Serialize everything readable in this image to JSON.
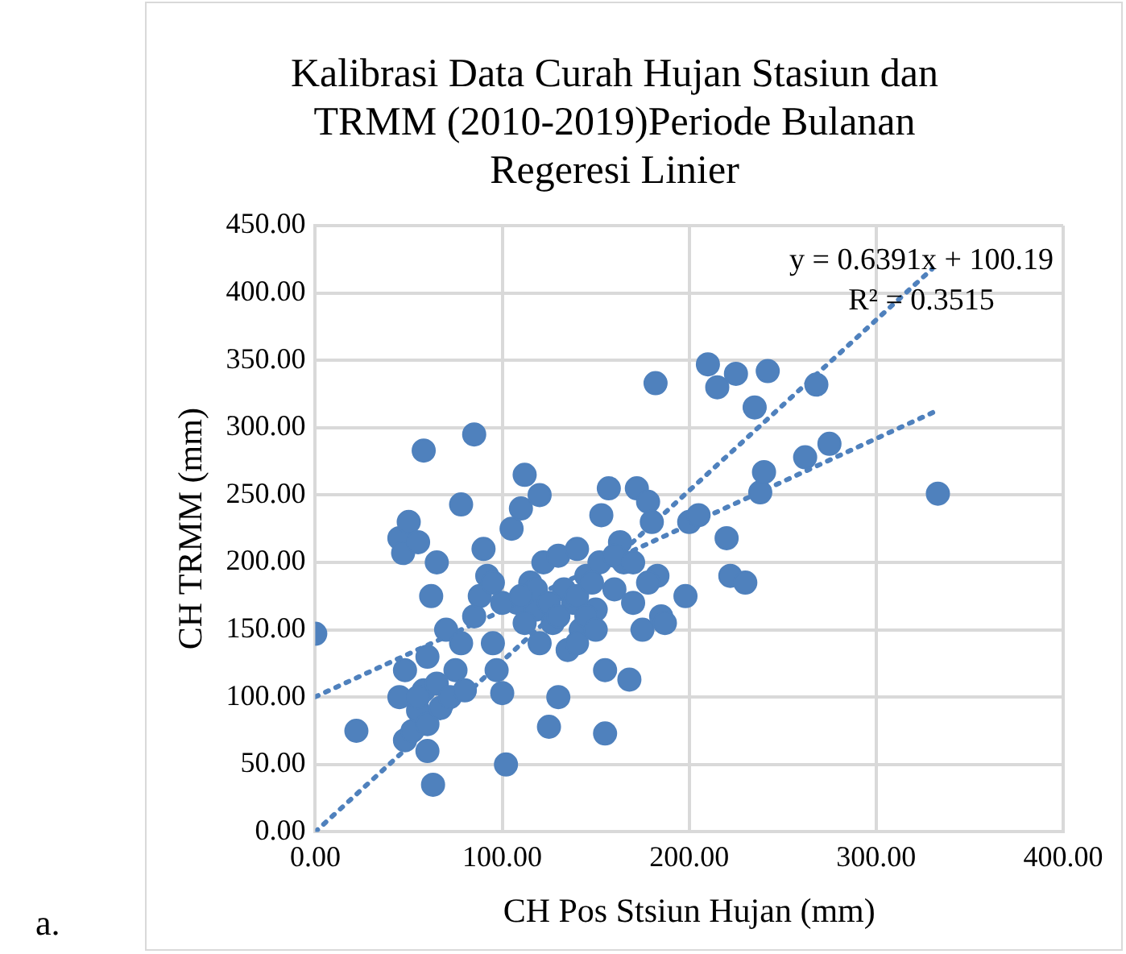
{
  "chart_data": {
    "type": "scatter",
    "title": "Kalibrasi Data Curah Hujan Stasiun dan TRMM (2010-2019)Periode Bulanan Regeresi Linier",
    "xlabel": "CH Pos Stsiun Hujan (mm)",
    "ylabel": "CH TRMM (mm)",
    "xlim": [
      0,
      400
    ],
    "ylim": [
      0,
      450
    ],
    "xticks": [
      {
        "value": 0,
        "label": "0.00"
      },
      {
        "value": 100,
        "label": "100.00"
      },
      {
        "value": 200,
        "label": "200.00"
      },
      {
        "value": 300,
        "label": "300.00"
      },
      {
        "value": 400,
        "label": "400.00"
      }
    ],
    "yticks": [
      {
        "value": 0,
        "label": "0.00"
      },
      {
        "value": 50,
        "label": "50.00"
      },
      {
        "value": 100,
        "label": "100.00"
      },
      {
        "value": 150,
        "label": "150.00"
      },
      {
        "value": 200,
        "label": "200.00"
      },
      {
        "value": 250,
        "label": "250.00"
      },
      {
        "value": 300,
        "label": "300.00"
      },
      {
        "value": 350,
        "label": "350.00"
      },
      {
        "value": 400,
        "label": "400.00"
      },
      {
        "value": 450,
        "label": "450.00"
      }
    ],
    "grid": true,
    "legend": false,
    "marker": "circle",
    "series": [
      {
        "color": "#4f81bd",
        "x": [
          0,
          22,
          45,
          47,
          50,
          55,
          48,
          45,
          48,
          52,
          55,
          58,
          60,
          62,
          60,
          63,
          65,
          58,
          55,
          60,
          65,
          67,
          70,
          72,
          75,
          78,
          80,
          85,
          78,
          85,
          88,
          90,
          92,
          95,
          97,
          100,
          102,
          105,
          108,
          110,
          112,
          115,
          118,
          120,
          122,
          125,
          127,
          130,
          130,
          133,
          135,
          138,
          140,
          142,
          145,
          150,
          152,
          153,
          155,
          155,
          157,
          160,
          163,
          165,
          168,
          170,
          172,
          175,
          178,
          180,
          182,
          183,
          185,
          187,
          198,
          200,
          205,
          210,
          215,
          220,
          222,
          225,
          230,
          235,
          238,
          240,
          242,
          262,
          268,
          275,
          333,
          112,
          118,
          125,
          130,
          140,
          145,
          148,
          160,
          170,
          178,
          95,
          100,
          110,
          120,
          140,
          150
        ],
        "values": [
          147,
          75,
          218,
          207,
          230,
          215,
          120,
          100,
          68,
          75,
          90,
          105,
          130,
          175,
          60,
          35,
          200,
          283,
          100,
          80,
          110,
          92,
          150,
          100,
          120,
          140,
          105,
          295,
          243,
          160,
          175,
          210,
          190,
          140,
          120,
          103,
          50,
          225,
          170,
          240,
          265,
          185,
          165,
          250,
          200,
          78,
          155,
          100,
          205,
          180,
          135,
          170,
          210,
          150,
          190,
          165,
          200,
          235,
          120,
          73,
          255,
          180,
          215,
          200,
          113,
          170,
          255,
          150,
          245,
          230,
          333,
          190,
          160,
          155,
          175,
          230,
          235,
          347,
          330,
          218,
          190,
          340,
          185,
          315,
          252,
          267,
          342,
          278,
          332,
          288,
          251,
          155,
          180,
          170,
          160,
          175,
          160,
          185,
          205,
          200,
          185,
          185,
          170,
          175,
          140,
          140,
          150
        ]
      },
      {
        "type": "line",
        "color": "#4f81bd",
        "line_style": "dotted",
        "marker": "none",
        "x": [
          0,
          333
        ],
        "values": [
          100.2,
          313.0
        ]
      },
      {
        "type": "line",
        "color": "#4f81bd",
        "line_style": "dotted",
        "marker": "none",
        "x": [
          0,
          330
        ],
        "values": [
          0,
          418
        ]
      }
    ],
    "annotations": [
      "y = 0.6391x + 100.19",
      "R² = 0.3515",
      "a."
    ]
  }
}
